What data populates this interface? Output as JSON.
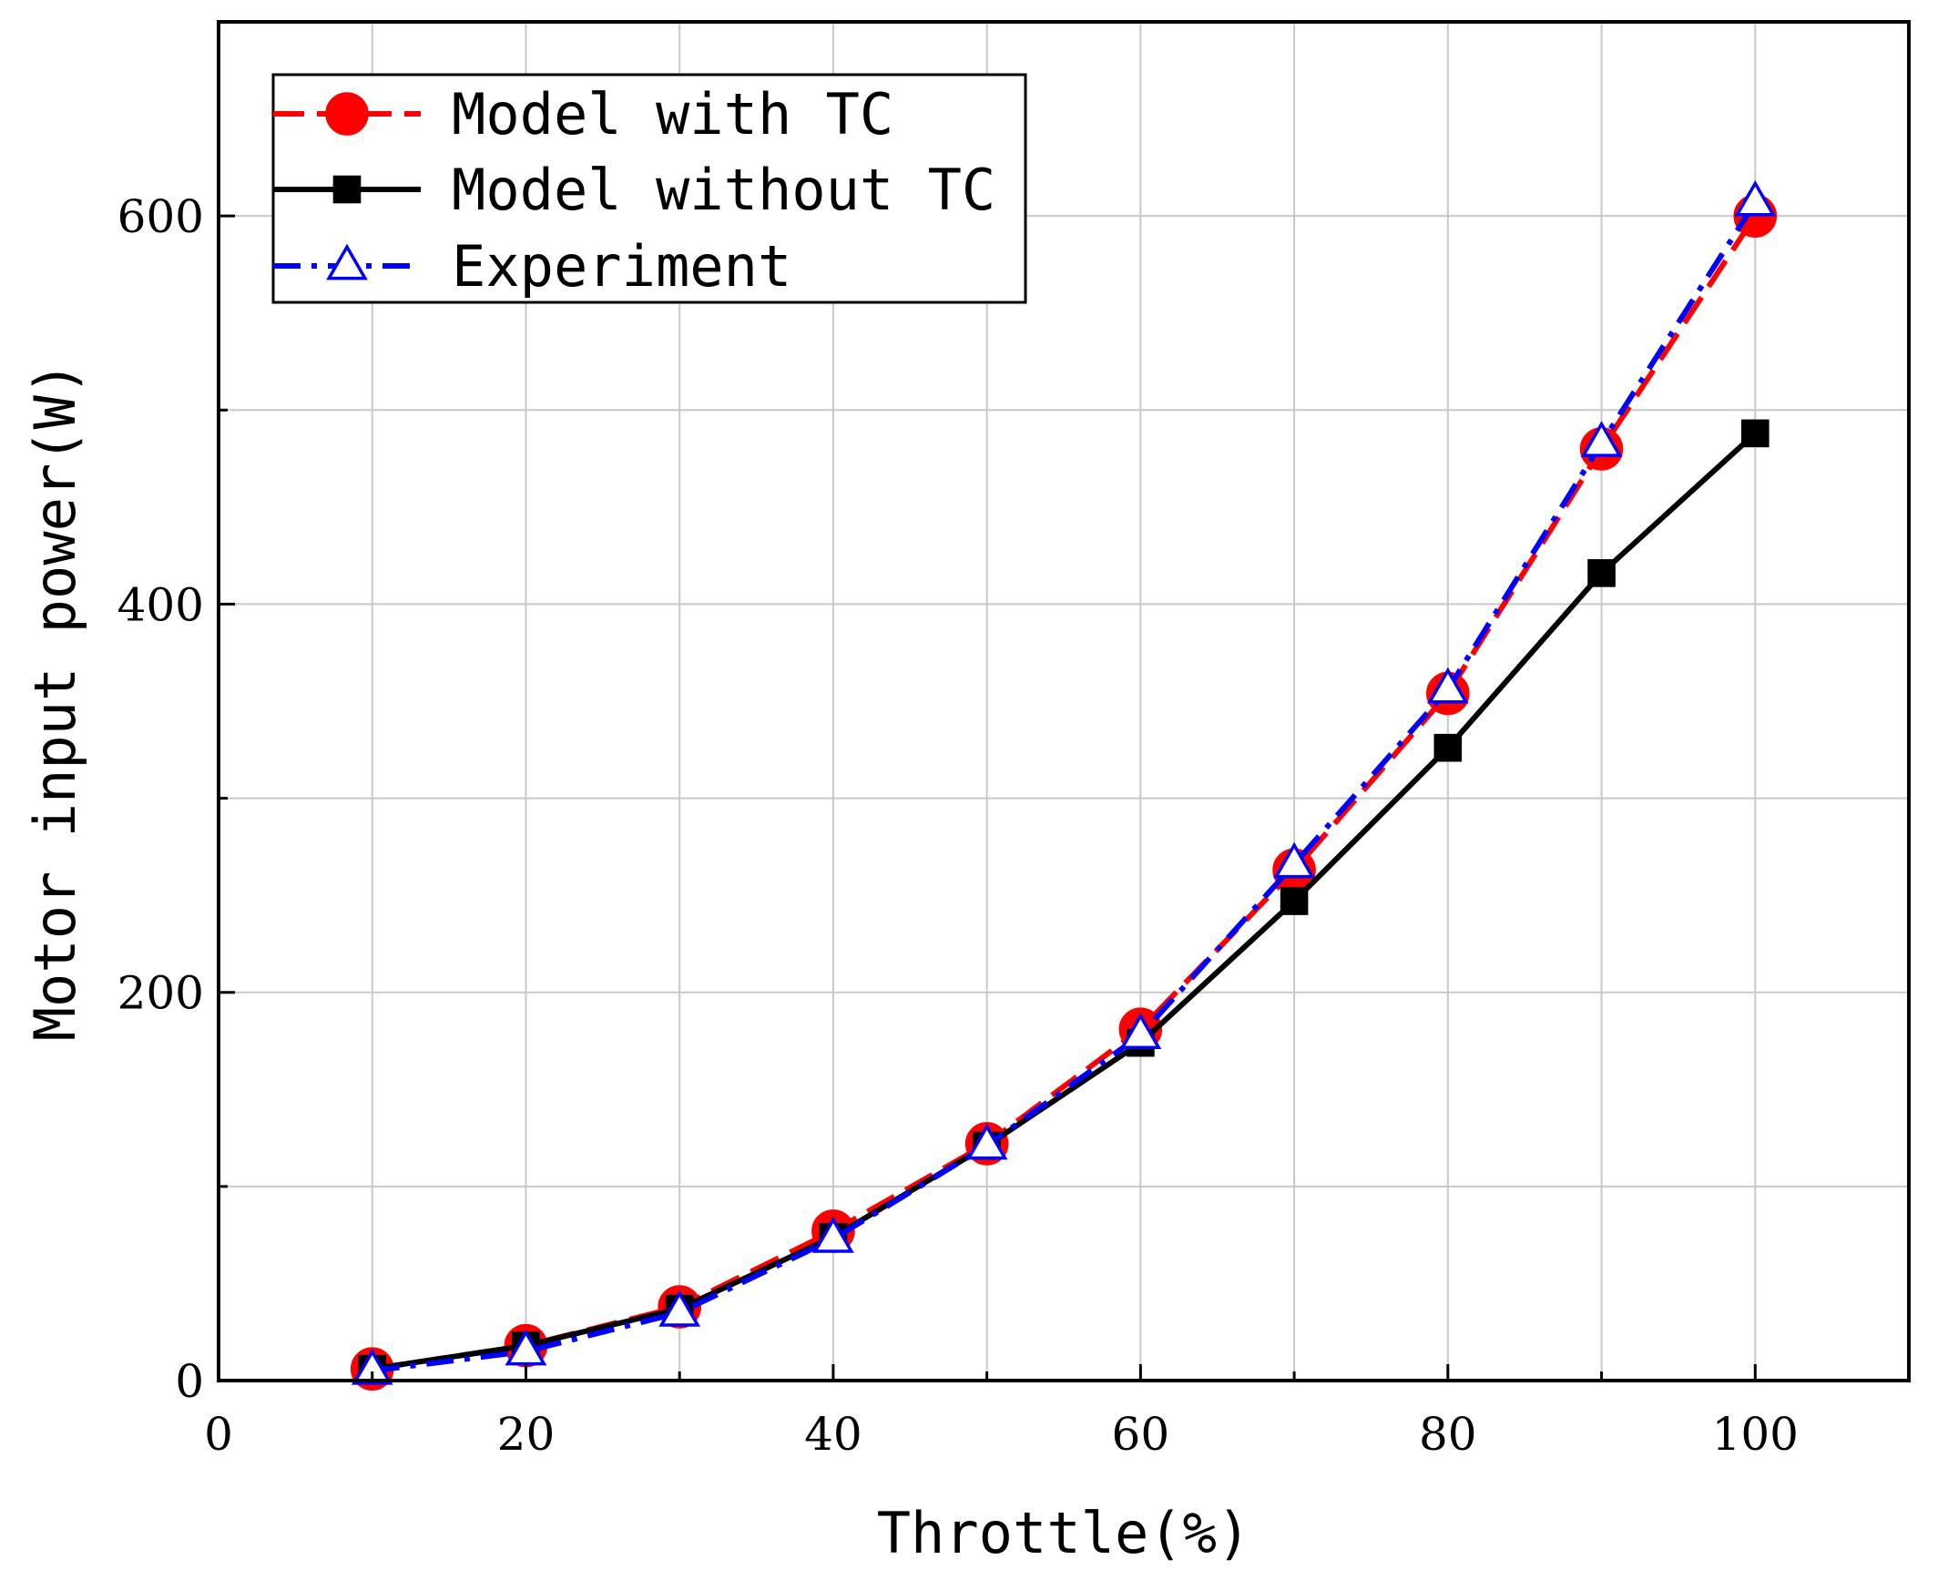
{
  "chart_data": {
    "type": "line",
    "title": "",
    "xlabel": "Throttle(%)",
    "ylabel": "Motor input power(W)",
    "xlim": [
      0,
      110
    ],
    "ylim": [
      0,
      700
    ],
    "x_ticks": [
      0,
      20,
      40,
      60,
      80,
      100
    ],
    "x_tick_labels": [
      "0",
      "20",
      "40",
      "60",
      "80",
      "100"
    ],
    "x_minor_ticks": [
      10,
      30,
      50,
      70,
      90
    ],
    "y_ticks": [
      0,
      200,
      400,
      600
    ],
    "y_tick_labels": [
      "0",
      "200",
      "400",
      "600"
    ],
    "y_minor_ticks": [
      100,
      300,
      500
    ],
    "grid": true,
    "legend_position": "top-left",
    "x": [
      10,
      20,
      30,
      40,
      50,
      60,
      70,
      80,
      90,
      100
    ],
    "series": [
      {
        "name": "Model with TC",
        "color": "#ff0000",
        "line_style": "dashed",
        "marker": "circle",
        "values": [
          6,
          18,
          38,
          77,
          122,
          181,
          263,
          354,
          480,
          600
        ]
      },
      {
        "name": "Model without TC",
        "color": "#000000",
        "line_style": "solid",
        "marker": "square",
        "values": [
          6,
          18,
          37,
          74,
          121,
          174,
          247,
          326,
          416,
          488
        ]
      },
      {
        "name": "Experiment",
        "color": "#0000ff",
        "line_style": "dash-dot",
        "marker": "triangle-open",
        "values": [
          5,
          15,
          35,
          73,
          121,
          178,
          266,
          356,
          483,
          607
        ]
      }
    ]
  }
}
